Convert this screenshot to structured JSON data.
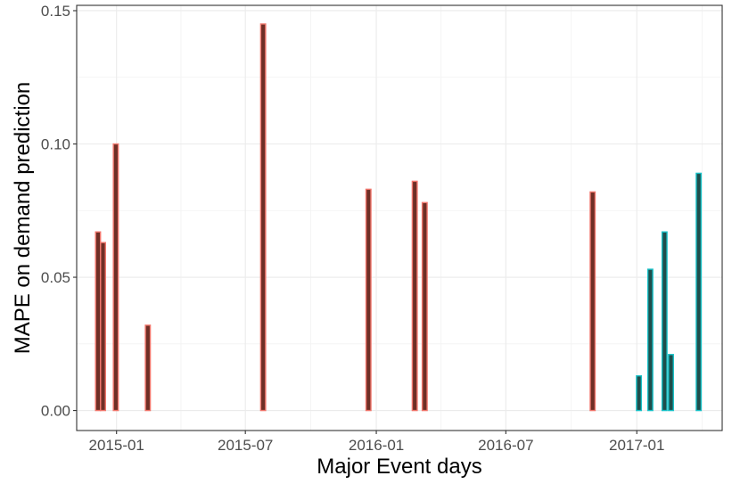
{
  "chart_data": {
    "type": "bar",
    "title": "",
    "xlabel": "Major Event days",
    "ylabel": "MAPE on demand prediction",
    "x_type": "date",
    "xlim": [
      "2014-11-06",
      "2017-05-01"
    ],
    "ylim": [
      -0.0075,
      0.152
    ],
    "x_ticks": [
      {
        "date": "2015-01-01",
        "label": "2015-01"
      },
      {
        "date": "2015-07-01",
        "label": "2015-07"
      },
      {
        "date": "2016-01-01",
        "label": "2016-01"
      },
      {
        "date": "2016-07-01",
        "label": "2016-07"
      },
      {
        "date": "2017-01-01",
        "label": "2017-01"
      }
    ],
    "y_ticks": [
      {
        "value": 0.0,
        "label": "0.00"
      },
      {
        "value": 0.05,
        "label": "0.05"
      },
      {
        "value": 0.1,
        "label": "0.10"
      },
      {
        "value": 0.15,
        "label": "0.15"
      }
    ],
    "grid": true,
    "series": [
      {
        "fill": "#6e2f26",
        "outline": "#f0766c",
        "points": [
          {
            "date": "2014-12-06",
            "value": 0.067
          },
          {
            "date": "2014-12-13",
            "value": 0.063
          },
          {
            "date": "2014-12-31",
            "value": 0.1
          },
          {
            "date": "2015-02-14",
            "value": 0.032
          },
          {
            "date": "2015-07-26",
            "value": 0.145
          },
          {
            "date": "2015-12-21",
            "value": 0.083
          },
          {
            "date": "2016-02-24",
            "value": 0.086
          },
          {
            "date": "2016-03-09",
            "value": 0.078
          },
          {
            "date": "2016-10-31",
            "value": 0.082
          }
        ]
      },
      {
        "fill": "#1f4e4c",
        "outline": "#19c2c8",
        "points": [
          {
            "date": "2017-01-04",
            "value": 0.013
          },
          {
            "date": "2017-01-20",
            "value": 0.053
          },
          {
            "date": "2017-02-09",
            "value": 0.067
          },
          {
            "date": "2017-02-18",
            "value": 0.021
          },
          {
            "date": "2017-03-29",
            "value": 0.089
          }
        ]
      }
    ]
  }
}
